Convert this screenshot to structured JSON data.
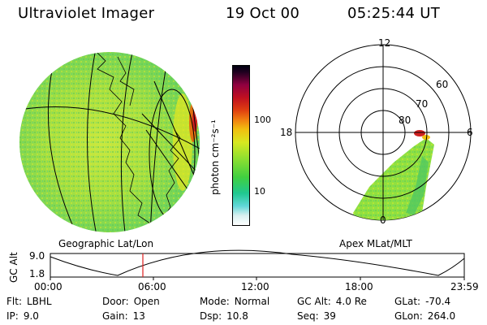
{
  "header": {
    "title": "Ultraviolet Imager",
    "date": "19 Oct 00",
    "time": "05:25:44 UT"
  },
  "left_map": {
    "caption": "Geographic Lat/Lon"
  },
  "right_map": {
    "caption": "Apex MLat/MLT",
    "lat_labels": [
      "60",
      "70",
      "80"
    ],
    "mlt_labels": [
      "12",
      "18",
      "6",
      "0"
    ]
  },
  "colorbar": {
    "unit_label": "photon cm⁻²s⁻¹",
    "ticks": [
      "100",
      "10"
    ],
    "colors": [
      "#e8e8e8",
      "#a0e0e0",
      "#30c8c8",
      "#20c878",
      "#48d848",
      "#90e030",
      "#d8e820",
      "#f0d010",
      "#f0a010",
      "#e06010",
      "#d02020",
      "#a00030",
      "#400040",
      "#000010"
    ]
  },
  "altitude": {
    "ylabel": "GC Alt",
    "y_ticks": [
      "9.0",
      "1.8"
    ],
    "x_ticks": [
      "00:00",
      "06:00",
      "12:00",
      "18:00",
      "23:59"
    ],
    "marker_time": "05:25"
  },
  "info": {
    "row1": [
      {
        "key": "Flt:",
        "value": "LBHL"
      },
      {
        "key": "Door:",
        "value": "Open"
      },
      {
        "key": "Mode:",
        "value": "Normal"
      },
      {
        "key": "GC Alt:",
        "value": "4.0 Re"
      },
      {
        "key": "GLat:",
        "value": "-70.4"
      }
    ],
    "row2": [
      {
        "key": "IP:",
        "value": "9.0"
      },
      {
        "key": "Gain:",
        "value": "13"
      },
      {
        "key": "Dsp:",
        "value": "10.8"
      },
      {
        "key": "Seq:",
        "value": "39"
      },
      {
        "key": "GLon:",
        "value": "264.0"
      }
    ]
  }
}
